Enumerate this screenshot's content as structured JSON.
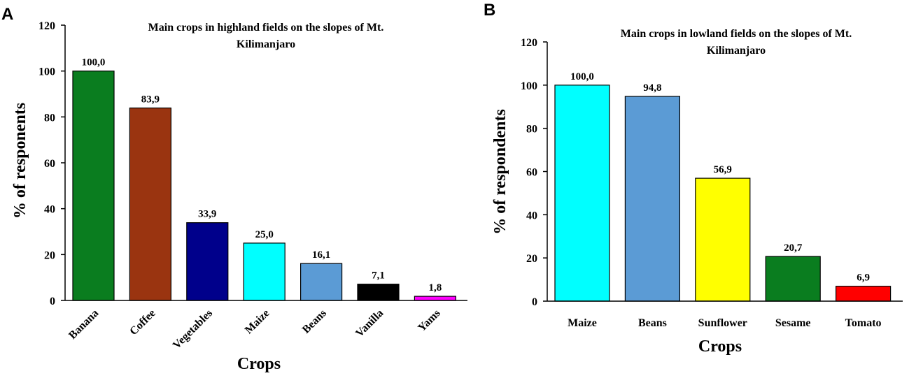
{
  "chart_data": [
    {
      "panel": "A",
      "type": "bar",
      "title_line1": "Main crops in highland fields on the slopes of Mt.",
      "title_line2": "Kilimanjaro",
      "xlabel": "Crops",
      "ylabel": "% of responents",
      "ylim": [
        0,
        120
      ],
      "yticks": [
        "0",
        "20",
        "40",
        "60",
        "80",
        "100",
        "120"
      ],
      "categories": [
        "Banana",
        "Coffee",
        "Vegetables",
        "Maize",
        "Beans",
        "Vanilla",
        "Yams"
      ],
      "values": [
        100.0,
        83.9,
        33.9,
        25.0,
        16.1,
        7.1,
        1.8
      ],
      "value_labels": [
        "100,0",
        "83,9",
        "33,9",
        "25,0",
        "16,1",
        "7,1",
        "1,8"
      ],
      "colors": [
        "#0a7d1f",
        "#9a3410",
        "#00008b",
        "#00ffff",
        "#5b9bd5",
        "#000000",
        "#ff00ff"
      ],
      "tick_label_rotation": "diagonal"
    },
    {
      "panel": "B",
      "type": "bar",
      "title_line1": "Main crops in lowland fields on the slopes of Mt.",
      "title_line2": "Kilimanjaro",
      "xlabel": "Crops",
      "ylabel": "% of respondents",
      "ylim": [
        0,
        120
      ],
      "yticks": [
        "0",
        "20",
        "40",
        "60",
        "80",
        "100",
        "120"
      ],
      "categories": [
        "Maize",
        "Beans",
        "Sunflower",
        "Sesame",
        "Tomato"
      ],
      "values": [
        100.0,
        94.8,
        56.9,
        20.7,
        6.9
      ],
      "value_labels": [
        "100,0",
        "94,8",
        "56,9",
        "20,7",
        "6,9"
      ],
      "colors": [
        "#00ffff",
        "#5b9bd5",
        "#ffff00",
        "#0a7d1f",
        "#ff0000"
      ],
      "tick_label_rotation": "horizontal"
    }
  ]
}
